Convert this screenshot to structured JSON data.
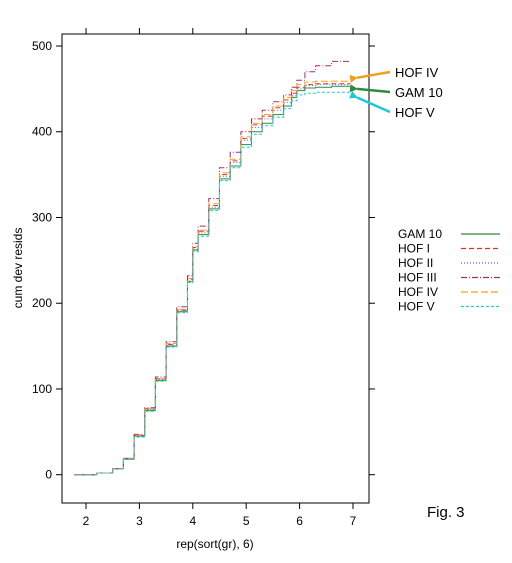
{
  "chart_data": {
    "type": "line",
    "xlabel": "rep(sort(gr), 6)",
    "ylabel": "cum dev resids",
    "xlim": [
      1.55,
      7.3
    ],
    "ylim": [
      -33,
      514
    ],
    "x_ticks": [
      2,
      3,
      4,
      5,
      6,
      7
    ],
    "y_ticks": [
      0,
      100,
      200,
      300,
      400,
      500
    ],
    "grid": false,
    "legend_position": "right",
    "series": [
      {
        "name": "GAM 10",
        "color": "#2e8b3e",
        "dash": "solid",
        "x": [
          1.78,
          2.2,
          2.5,
          2.7,
          2.9,
          3.1,
          3.3,
          3.5,
          3.7,
          3.9,
          4.0,
          4.1,
          4.3,
          4.5,
          4.7,
          4.9,
          5.1,
          5.3,
          5.5,
          5.7,
          5.85,
          5.95,
          6.1,
          6.3,
          6.6,
          6.95
        ],
        "y": [
          0,
          2,
          7,
          18,
          45,
          75,
          110,
          150,
          190,
          225,
          262,
          280,
          310,
          345,
          360,
          385,
          400,
          410,
          420,
          430,
          440,
          448,
          451,
          452,
          453,
          453
        ]
      },
      {
        "name": "HOF I",
        "color": "#e03030",
        "dash": "5,3",
        "x": [
          1.78,
          2.2,
          2.5,
          2.7,
          2.9,
          3.1,
          3.3,
          3.5,
          3.7,
          3.9,
          4.0,
          4.1,
          4.3,
          4.5,
          4.7,
          4.9,
          5.1,
          5.3,
          5.5,
          5.7,
          5.85,
          5.95,
          6.1,
          6.3,
          6.6,
          6.95
        ],
        "y": [
          0,
          2,
          7,
          19,
          46,
          77,
          112,
          152,
          192,
          228,
          265,
          284,
          314,
          350,
          366,
          392,
          408,
          418,
          428,
          437,
          445,
          452,
          455,
          456,
          456,
          456
        ]
      },
      {
        "name": "HOF II",
        "color": "#4a6fd8",
        "dash": "1,2",
        "x": [
          1.78,
          2.2,
          2.5,
          2.7,
          2.9,
          3.1,
          3.3,
          3.5,
          3.7,
          3.9,
          4.0,
          4.1,
          4.3,
          4.5,
          4.7,
          4.9,
          5.1,
          5.3,
          5.5,
          5.7,
          5.85,
          5.95,
          6.1,
          6.3,
          6.6,
          6.95
        ],
        "y": [
          0,
          2,
          7,
          18,
          45,
          76,
          111,
          151,
          191,
          226,
          263,
          282,
          312,
          348,
          364,
          390,
          405,
          415,
          425,
          434,
          442,
          450,
          454,
          455,
          455,
          455
        ]
      },
      {
        "name": "HOF III",
        "color": "#a0306a",
        "dash": "6,2,1,2",
        "x": [
          1.78,
          2.2,
          2.5,
          2.7,
          2.9,
          3.1,
          3.3,
          3.5,
          3.7,
          3.9,
          4.0,
          4.1,
          4.3,
          4.5,
          4.7,
          4.9,
          5.1,
          5.3,
          5.5,
          5.7,
          5.85,
          5.95,
          6.1,
          6.3,
          6.6,
          6.95
        ],
        "y": [
          0,
          2,
          7,
          19,
          47,
          78,
          114,
          155,
          196,
          232,
          270,
          290,
          322,
          358,
          376,
          400,
          415,
          425,
          435,
          443,
          452,
          460,
          470,
          477,
          482,
          482
        ]
      },
      {
        "name": "HOF IV",
        "color": "#f0a020",
        "dash": "7,3",
        "x": [
          1.78,
          2.2,
          2.5,
          2.7,
          2.9,
          3.1,
          3.3,
          3.5,
          3.7,
          3.9,
          4.0,
          4.1,
          4.3,
          4.5,
          4.7,
          4.9,
          5.1,
          5.3,
          5.5,
          5.7,
          5.85,
          5.95,
          6.1,
          6.3,
          6.6,
          6.95
        ],
        "y": [
          0,
          2,
          7,
          19,
          46,
          77,
          112,
          153,
          193,
          229,
          266,
          285,
          316,
          352,
          368,
          394,
          410,
          420,
          430,
          440,
          448,
          455,
          458,
          459,
          459,
          459
        ]
      },
      {
        "name": "HOF V",
        "color": "#20c8d8",
        "dash": "3,2",
        "x": [
          1.78,
          2.2,
          2.5,
          2.7,
          2.9,
          3.1,
          3.3,
          3.5,
          3.7,
          3.9,
          4.0,
          4.1,
          4.3,
          4.5,
          4.7,
          4.9,
          5.1,
          5.3,
          5.5,
          5.7,
          5.85,
          5.95,
          6.1,
          6.3,
          6.6,
          6.95
        ],
        "y": [
          0,
          2,
          7,
          18,
          44,
          74,
          109,
          149,
          189,
          224,
          260,
          278,
          308,
          343,
          358,
          382,
          397,
          407,
          417,
          427,
          436,
          443,
          445,
          446,
          446,
          446
        ]
      }
    ],
    "annotations": [
      {
        "text": "HOF IV",
        "arrow_color": "#f0a020",
        "y": 463
      },
      {
        "text": "GAM 10",
        "arrow_color": "#2e8b3e",
        "y": 450
      },
      {
        "text": "HOF V",
        "arrow_color": "#20c8d8",
        "y": 440
      }
    ],
    "figure_label": "Fig. 3"
  }
}
